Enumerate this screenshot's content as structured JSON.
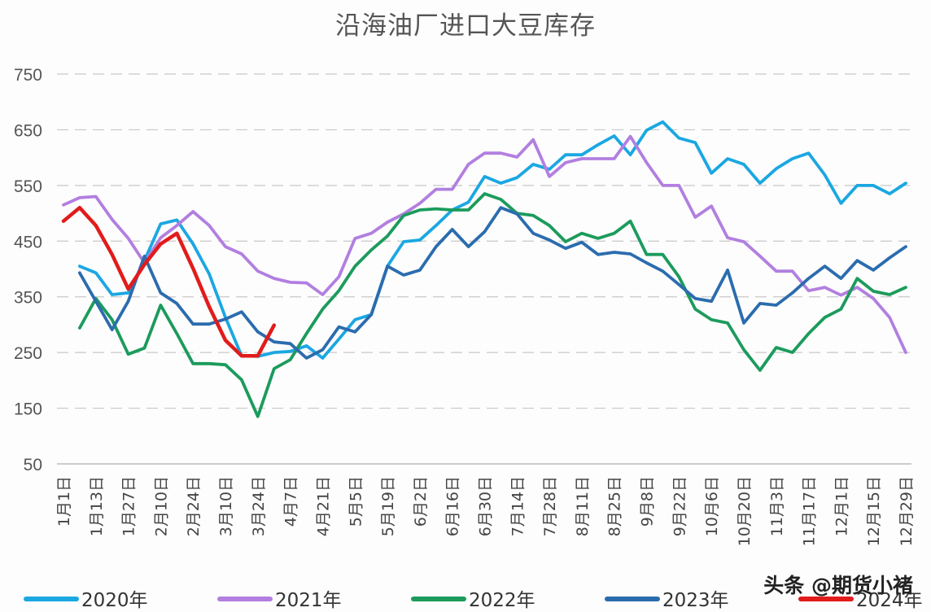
{
  "chart_data": {
    "type": "line",
    "title": "沿海油厂进口大豆库存",
    "xlabel": "",
    "ylabel": "",
    "ylim": [
      50,
      750
    ],
    "yticks": [
      50,
      150,
      250,
      350,
      450,
      550,
      650,
      750
    ],
    "grid": true,
    "legend_position": "bottom-left",
    "x_tick_labels": [
      "1月1日",
      "1月13日",
      "1月27日",
      "2月10日",
      "2月24日",
      "3月10日",
      "3月24日",
      "4月7日",
      "4月21日",
      "5月5日",
      "5月19日",
      "6月2日",
      "6月16日",
      "6月30日",
      "7月14日",
      "7月28日",
      "8月11日",
      "8月25日",
      "9月8日",
      "9月22日",
      "10月6日",
      "10月20日",
      "11月3日",
      "11月17日",
      "12月1日",
      "12月15日",
      "12月29日"
    ],
    "points_per_series": 53,
    "series": [
      {
        "name": "2020年",
        "color": "#1ba7e2",
        "values": [
          null,
          405,
          393,
          354,
          357,
          415,
          481,
          488,
          445,
          391,
          313,
          244,
          243,
          250,
          252,
          262,
          240,
          274,
          309,
          318,
          405,
          449,
          452,
          478,
          506,
          520,
          566,
          554,
          564,
          588,
          579,
          605,
          605,
          623,
          639,
          605,
          649,
          664,
          635,
          627,
          572,
          598,
          588,
          554,
          580,
          598,
          608,
          569,
          518,
          550,
          550,
          535,
          554
        ]
      },
      {
        "name": "2021年",
        "color": "#b27fe0",
        "values": [
          515,
          528,
          530,
          489,
          455,
          411,
          456,
          478,
          503,
          478,
          440,
          427,
          396,
          383,
          376,
          375,
          354,
          386,
          455,
          464,
          484,
          499,
          518,
          543,
          543,
          588,
          608,
          608,
          601,
          632,
          566,
          591,
          598,
          598,
          598,
          638,
          591,
          550,
          550,
          493,
          513,
          456,
          449,
          423,
          396,
          396,
          361,
          367,
          353,
          367,
          347,
          313,
          250
        ]
      },
      {
        "name": "2022年",
        "color": "#1c9b5c",
        "values": [
          null,
          294,
          347,
          309,
          247,
          258,
          335,
          284,
          230,
          230,
          228,
          201,
          135,
          221,
          237,
          284,
          328,
          361,
          405,
          434,
          459,
          496,
          506,
          508,
          506,
          506,
          535,
          525,
          500,
          496,
          478,
          449,
          464,
          455,
          464,
          486,
          426,
          426,
          386,
          328,
          309,
          303,
          255,
          218,
          259,
          250,
          284,
          313,
          328,
          383,
          360,
          354,
          367
        ]
      },
      {
        "name": "2023年",
        "color": "#2b6cae",
        "values": [
          null,
          393,
          342,
          291,
          342,
          423,
          357,
          338,
          301,
          301,
          310,
          323,
          287,
          269,
          266,
          240,
          255,
          296,
          287,
          318,
          405,
          389,
          398,
          440,
          471,
          440,
          467,
          510,
          499,
          464,
          452,
          437,
          448,
          426,
          430,
          427,
          411,
          396,
          372,
          347,
          342,
          398,
          303,
          338,
          335,
          357,
          383,
          405,
          383,
          415,
          398,
          420,
          440
        ]
      },
      {
        "name": "2024年",
        "color": "#e21b1b",
        "values": [
          486,
          510,
          478,
          426,
          364,
          408,
          445,
          464,
          401,
          332,
          272,
          244,
          244,
          299
        ]
      }
    ]
  },
  "watermark": "头条 @期货小褚"
}
